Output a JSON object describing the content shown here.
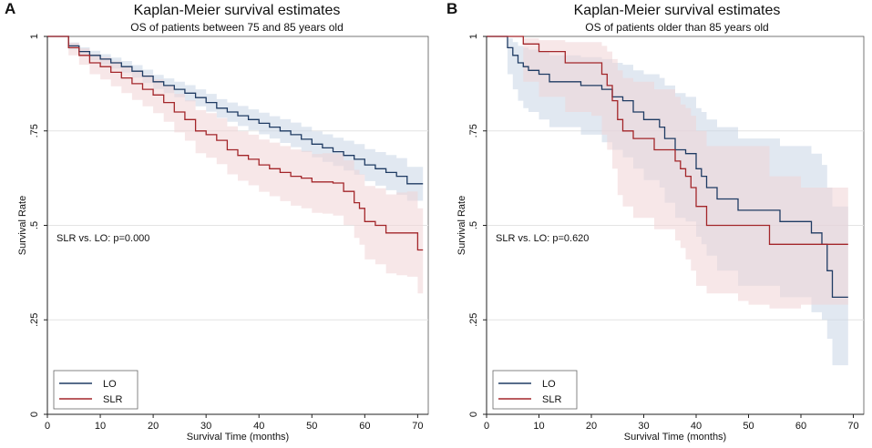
{
  "chart_data": [
    {
      "panel": "A",
      "type": "line",
      "title": "Kaplan-Meier survival estimates",
      "subtitle": "OS of patients between 75 and 85 years old",
      "xlabel": "Survival Time (months)",
      "ylabel": "Survival Rate",
      "xlim": [
        0,
        72
      ],
      "ylim": [
        0,
        1
      ],
      "xticks": [
        0,
        10,
        20,
        30,
        40,
        50,
        60,
        70
      ],
      "yticks": [
        0,
        0.25,
        0.5,
        0.75,
        1
      ],
      "ytick_labels": [
        "0",
        ".25",
        ".5",
        ".75",
        "1"
      ],
      "annotation": "SLR vs. LO: p=0.000",
      "legend": [
        "LO",
        "SLR"
      ],
      "legend_position": "bottom-left",
      "series": [
        {
          "name": "LO",
          "color": "#1f3b63",
          "band_color": "#c9d5e6",
          "x": [
            0,
            2,
            4,
            6,
            8,
            10,
            12,
            14,
            16,
            18,
            20,
            22,
            24,
            26,
            28,
            30,
            32,
            34,
            36,
            38,
            40,
            42,
            44,
            46,
            48,
            50,
            52,
            54,
            56,
            58,
            60,
            62,
            64,
            66,
            68,
            71
          ],
          "y": [
            1,
            1,
            0.975,
            0.96,
            0.95,
            0.94,
            0.93,
            0.92,
            0.908,
            0.895,
            0.88,
            0.87,
            0.86,
            0.85,
            0.838,
            0.825,
            0.81,
            0.8,
            0.79,
            0.78,
            0.77,
            0.76,
            0.75,
            0.74,
            0.728,
            0.715,
            0.705,
            0.695,
            0.685,
            0.675,
            0.66,
            0.65,
            0.64,
            0.63,
            0.61,
            0.61
          ],
          "lower": [
            1,
            1,
            0.965,
            0.948,
            0.937,
            0.926,
            0.915,
            0.904,
            0.891,
            0.877,
            0.861,
            0.85,
            0.839,
            0.828,
            0.815,
            0.801,
            0.785,
            0.774,
            0.763,
            0.752,
            0.741,
            0.73,
            0.718,
            0.707,
            0.694,
            0.68,
            0.668,
            0.657,
            0.645,
            0.634,
            0.617,
            0.605,
            0.593,
            0.581,
            0.565,
            0.565
          ],
          "upper": [
            1,
            1,
            0.984,
            0.971,
            0.962,
            0.953,
            0.944,
            0.935,
            0.924,
            0.912,
            0.898,
            0.889,
            0.88,
            0.871,
            0.86,
            0.848,
            0.834,
            0.825,
            0.816,
            0.807,
            0.798,
            0.789,
            0.781,
            0.772,
            0.761,
            0.749,
            0.741,
            0.732,
            0.724,
            0.715,
            0.702,
            0.694,
            0.686,
            0.678,
            0.655,
            0.655
          ]
        },
        {
          "name": "SLR",
          "color": "#a3262a",
          "band_color": "#f1d3d6",
          "x": [
            0,
            2,
            4,
            6,
            8,
            10,
            12,
            14,
            16,
            18,
            20,
            22,
            24,
            26,
            28,
            30,
            32,
            34,
            36,
            38,
            40,
            42,
            44,
            46,
            48,
            50,
            52,
            54,
            56,
            58,
            59,
            60,
            62,
            64,
            66,
            68,
            70,
            71
          ],
          "y": [
            1,
            1,
            0.97,
            0.95,
            0.93,
            0.92,
            0.905,
            0.89,
            0.875,
            0.86,
            0.845,
            0.825,
            0.8,
            0.78,
            0.75,
            0.74,
            0.725,
            0.7,
            0.685,
            0.675,
            0.66,
            0.65,
            0.64,
            0.63,
            0.625,
            0.615,
            0.615,
            0.612,
            0.59,
            0.56,
            0.545,
            0.51,
            0.5,
            0.48,
            0.48,
            0.48,
            0.435,
            0.435
          ],
          "lower": [
            1,
            1,
            0.95,
            0.925,
            0.9,
            0.886,
            0.868,
            0.85,
            0.832,
            0.815,
            0.797,
            0.774,
            0.746,
            0.724,
            0.691,
            0.679,
            0.662,
            0.635,
            0.618,
            0.606,
            0.589,
            0.577,
            0.564,
            0.552,
            0.545,
            0.533,
            0.531,
            0.526,
            0.501,
            0.467,
            0.449,
            0.41,
            0.397,
            0.373,
            0.368,
            0.364,
            0.32,
            0.32
          ],
          "upper": [
            1,
            1,
            0.983,
            0.968,
            0.953,
            0.945,
            0.934,
            0.922,
            0.91,
            0.898,
            0.886,
            0.869,
            0.848,
            0.831,
            0.805,
            0.797,
            0.784,
            0.762,
            0.749,
            0.74,
            0.727,
            0.719,
            0.71,
            0.701,
            0.697,
            0.689,
            0.691,
            0.69,
            0.672,
            0.647,
            0.635,
            0.604,
            0.598,
            0.582,
            0.587,
            0.59,
            0.545,
            0.545
          ]
        }
      ]
    },
    {
      "panel": "B",
      "type": "line",
      "title": "Kaplan-Meier survival estimates",
      "subtitle": "OS of patients older than 85 years old",
      "xlabel": "Survival Time (months)",
      "ylabel": "Survival Rate",
      "xlim": [
        0,
        72
      ],
      "ylim": [
        0,
        1
      ],
      "xticks": [
        0,
        10,
        20,
        30,
        40,
        50,
        60,
        70
      ],
      "yticks": [
        0,
        0.25,
        0.5,
        0.75,
        1
      ],
      "ytick_labels": [
        "0",
        ".25",
        ".5",
        ".75",
        "1"
      ],
      "annotation": "SLR vs. LO: p=0.620",
      "legend": [
        "LO",
        "SLR"
      ],
      "legend_position": "bottom-left",
      "series": [
        {
          "name": "LO",
          "color": "#1f3b63",
          "band_color": "#c9d5e6",
          "x": [
            0,
            3,
            4,
            5,
            6,
            7,
            8,
            10,
            12,
            18,
            22,
            24,
            26,
            28,
            30,
            33,
            34,
            36,
            38,
            40,
            41,
            42,
            44,
            46,
            48,
            50,
            56,
            62,
            64,
            65,
            66,
            67,
            69
          ],
          "y": [
            1,
            1,
            0.97,
            0.95,
            0.93,
            0.92,
            0.91,
            0.9,
            0.88,
            0.87,
            0.86,
            0.84,
            0.83,
            0.8,
            0.78,
            0.76,
            0.73,
            0.7,
            0.69,
            0.65,
            0.63,
            0.6,
            0.57,
            0.57,
            0.54,
            0.54,
            0.51,
            0.48,
            0.45,
            0.38,
            0.31,
            0.31,
            0.31
          ],
          "lower": [
            1,
            1,
            0.9,
            0.86,
            0.83,
            0.81,
            0.8,
            0.78,
            0.76,
            0.74,
            0.72,
            0.7,
            0.68,
            0.65,
            0.62,
            0.6,
            0.56,
            0.52,
            0.51,
            0.47,
            0.45,
            0.42,
            0.38,
            0.38,
            0.34,
            0.34,
            0.31,
            0.27,
            0.25,
            0.2,
            0.13,
            0.13,
            0.13
          ],
          "upper": [
            1,
            1,
            0.995,
            0.985,
            0.975,
            0.97,
            0.965,
            0.96,
            0.95,
            0.945,
            0.94,
            0.93,
            0.925,
            0.91,
            0.9,
            0.89,
            0.87,
            0.85,
            0.84,
            0.81,
            0.8,
            0.78,
            0.76,
            0.76,
            0.73,
            0.73,
            0.71,
            0.69,
            0.66,
            0.6,
            0.55,
            0.55,
            0.55
          ]
        },
        {
          "name": "SLR",
          "color": "#a3262a",
          "band_color": "#f1d3d6",
          "x": [
            0,
            5,
            7,
            10,
            15,
            20,
            22,
            23,
            24,
            25,
            26,
            28,
            32,
            36,
            37,
            38,
            39,
            40,
            42,
            48,
            50,
            54,
            60,
            66,
            69
          ],
          "y": [
            1,
            1,
            0.98,
            0.96,
            0.93,
            0.93,
            0.9,
            0.87,
            0.83,
            0.78,
            0.75,
            0.73,
            0.7,
            0.67,
            0.65,
            0.63,
            0.6,
            0.55,
            0.5,
            0.5,
            0.5,
            0.45,
            0.45,
            0.45,
            0.45
          ],
          "lower": [
            1,
            1,
            0.88,
            0.84,
            0.8,
            0.79,
            0.74,
            0.7,
            0.65,
            0.58,
            0.55,
            0.52,
            0.49,
            0.46,
            0.44,
            0.41,
            0.38,
            0.34,
            0.32,
            0.3,
            0.29,
            0.28,
            0.29,
            0.29,
            0.29
          ],
          "upper": [
            1,
            1,
            0.995,
            0.99,
            0.985,
            0.985,
            0.975,
            0.96,
            0.94,
            0.91,
            0.89,
            0.88,
            0.86,
            0.84,
            0.82,
            0.81,
            0.79,
            0.75,
            0.71,
            0.71,
            0.71,
            0.63,
            0.6,
            0.6,
            0.6
          ]
        }
      ]
    }
  ]
}
